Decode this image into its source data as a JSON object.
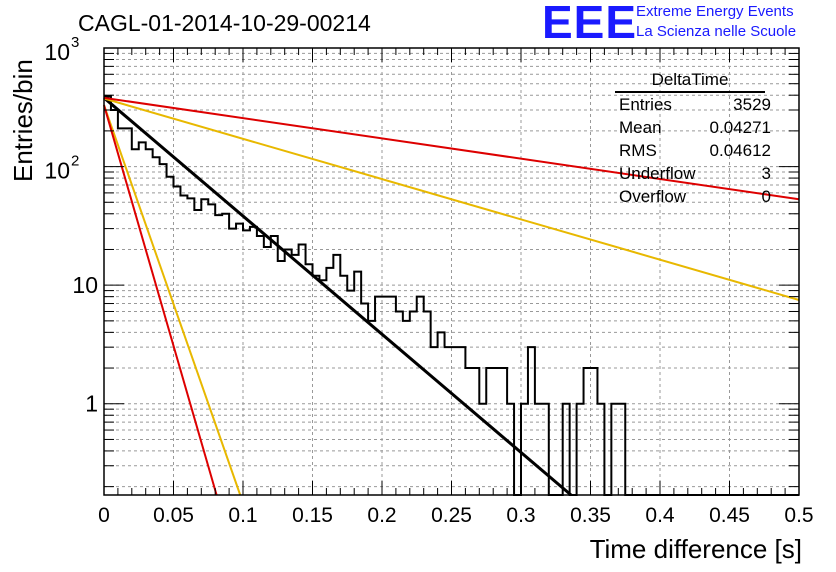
{
  "header": {
    "run_label": "CAGL-01-2014-10-29-00214"
  },
  "logo": {
    "mark": "EEE",
    "line1": "Extreme Energy Events",
    "line2": "La Scienza nelle Scuole",
    "color": "#1a1aff"
  },
  "stats": {
    "title": "DeltaTime",
    "rows": [
      {
        "key": "Entries",
        "value": "3529"
      },
      {
        "key": "Mean",
        "value": "0.04271"
      },
      {
        "key": "RMS",
        "value": "0.04612"
      },
      {
        "key": "Underflow",
        "value": "3"
      },
      {
        "key": "Overflow",
        "value": "0"
      }
    ]
  },
  "chart_data": {
    "type": "line",
    "xlabel": "Time difference [s]",
    "ylabel": "Entries/bin",
    "xlim": [
      0,
      0.5
    ],
    "ylim": [
      0.17,
      1000
    ],
    "ylog": true,
    "grid": true,
    "x_ticks": [
      "0",
      "0.05",
      "0.1",
      "0.15",
      "0.2",
      "0.25",
      "0.3",
      "0.35",
      "0.4",
      "0.45",
      "0.5"
    ],
    "y_ticks": [
      {
        "value": 1,
        "label": "1"
      },
      {
        "value": 10,
        "label": "10"
      },
      {
        "value": 100,
        "label": "10^2"
      },
      {
        "value": 1000,
        "label": "10^3"
      }
    ],
    "histogram": {
      "bin_width": 0.005,
      "color": "#000000",
      "counts": [
        390,
        300,
        210,
        210,
        140,
        160,
        140,
        120,
        105,
        82,
        68,
        57,
        54,
        43,
        53,
        48,
        39,
        40,
        30,
        33,
        29,
        31,
        26,
        21,
        26,
        16,
        20,
        18,
        22,
        15,
        12,
        11,
        14,
        18,
        12,
        9,
        13,
        7,
        5,
        8,
        8,
        8,
        6,
        5,
        6,
        8,
        6,
        3,
        4,
        3,
        3,
        3,
        2,
        2,
        1,
        2,
        2,
        2,
        1,
        0,
        1,
        3,
        1,
        1,
        0,
        0,
        1,
        0.17,
        1,
        2,
        2,
        1,
        0,
        1,
        1,
        0,
        0,
        0,
        0,
        0,
        0,
        0,
        0,
        0,
        0,
        0,
        0,
        0,
        0,
        0,
        0,
        0,
        0,
        0,
        0,
        0,
        0,
        0,
        0,
        0
      ]
    },
    "lines": [
      {
        "color": "#000000",
        "x0": 0,
        "y0": 380,
        "x1": 0.336,
        "y1": 0.17
      },
      {
        "color": "#e8b800",
        "x0": 0,
        "y0": 375,
        "x1": 0.5,
        "y1": 7.5
      },
      {
        "color": "#dd0000",
        "x0": 0,
        "y0": 380,
        "x1": 0.5,
        "y1": 53
      },
      {
        "color": "#e8b800",
        "x0": 0,
        "y0": 330,
        "x1": 0.098,
        "y1": 0.17
      },
      {
        "color": "#dd0000",
        "x0": 0,
        "y0": 330,
        "x1": 0.081,
        "y1": 0.17
      }
    ]
  }
}
